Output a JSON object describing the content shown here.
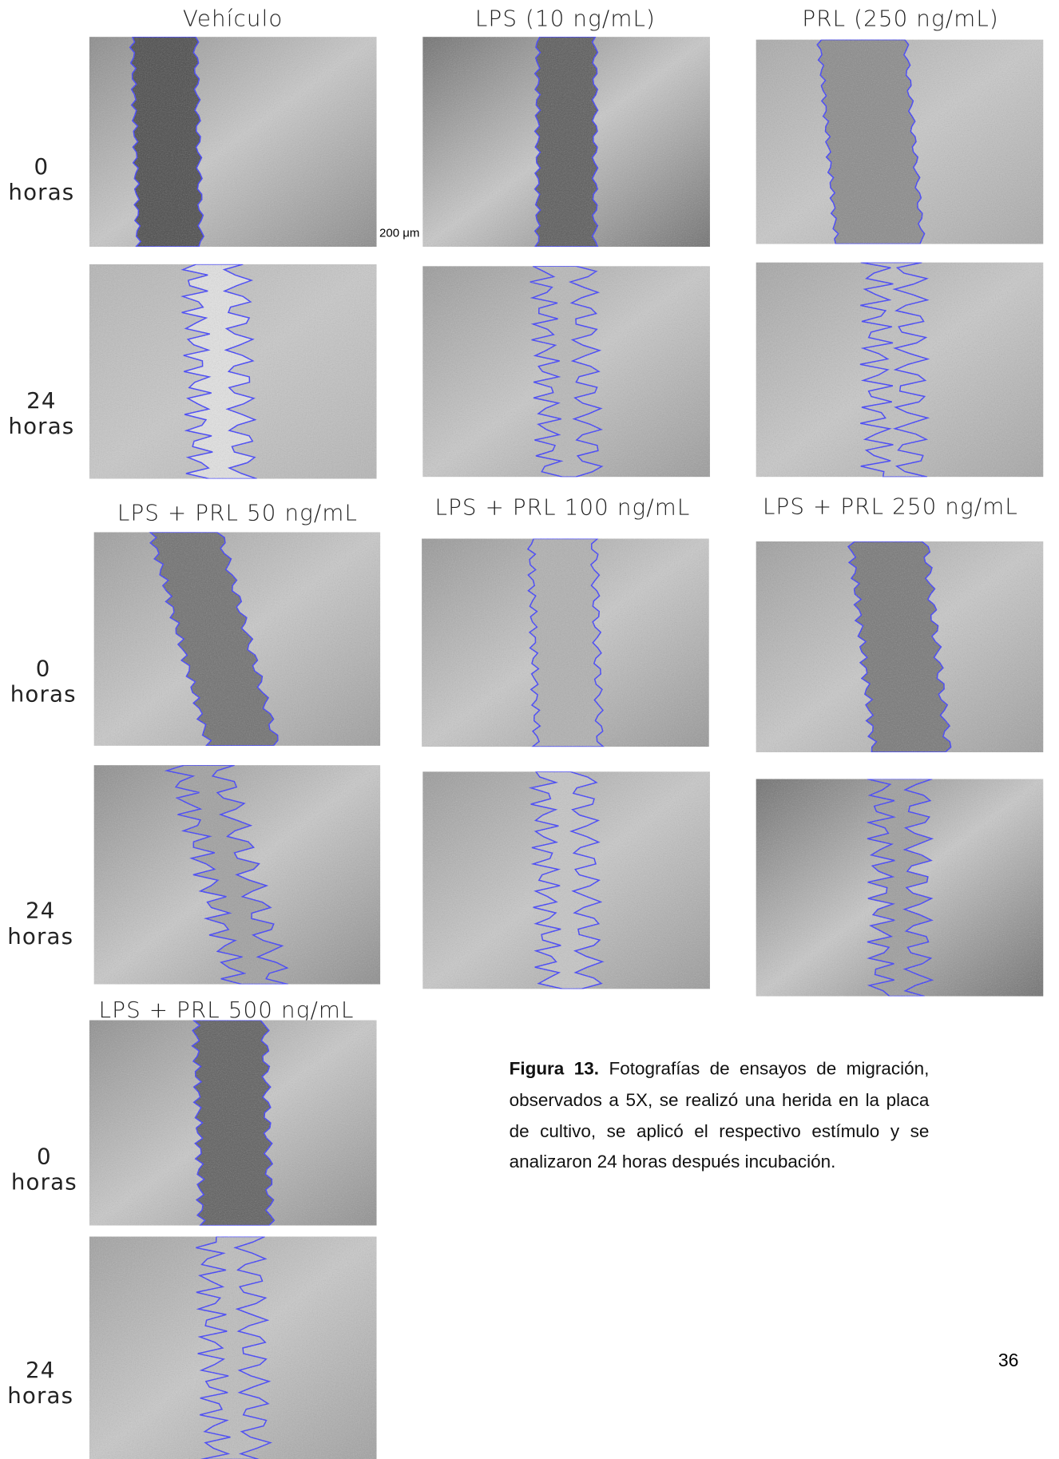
{
  "sections": [
    {
      "titles": [
        "Vehículo",
        "LPS (10 ng/mL)",
        "PRL (250 ng/mL)"
      ],
      "rows": [
        {
          "time": "0",
          "unit": "horas"
        },
        {
          "time": "24",
          "unit": "horas"
        }
      ]
    },
    {
      "titles": [
        "LPS + PRL 50 ng/mL",
        "LPS + PRL 100 ng/mL",
        "LPS + PRL 250 ng/mL"
      ],
      "rows": [
        {
          "time": "0",
          "unit": "horas"
        },
        {
          "time": "24",
          "unit": "horas"
        }
      ]
    },
    {
      "titles": [
        "LPS + PRL 500 ng/mL"
      ],
      "rows": [
        {
          "time": "0",
          "unit": "horas"
        },
        {
          "time": "24",
          "unit": "horas"
        }
      ]
    }
  ],
  "scale_bar": "200 μm",
  "caption": {
    "label": "Figura 13.",
    "text": "Fotografías de ensayos de migración, observados a 5X, se realizó una herida en la placa de cultivo, se aplicó el respectivo estímulo y se analizaron 24 horas después incubación."
  },
  "page_number": "36"
}
